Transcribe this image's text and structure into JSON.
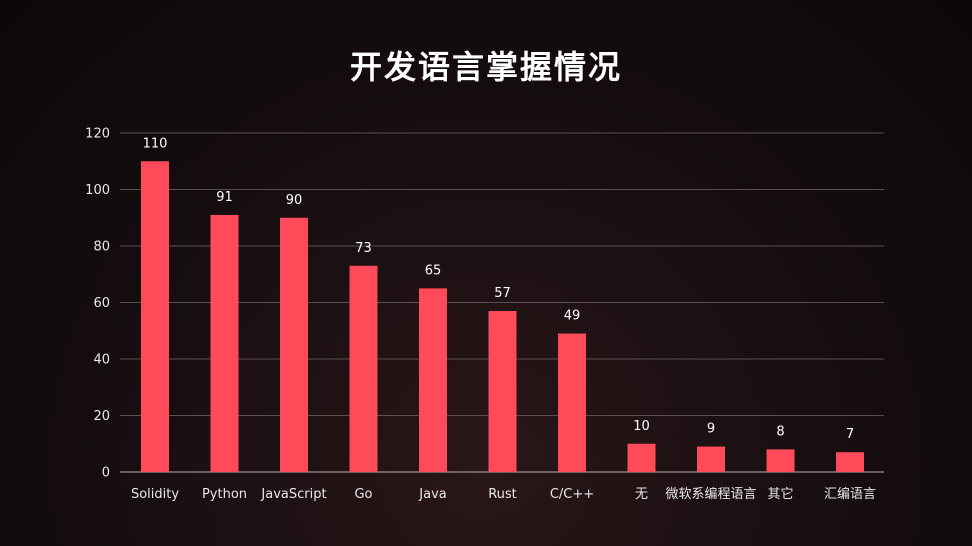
{
  "chart_data": {
    "type": "bar",
    "title": "开发语言掌握情况",
    "categories": [
      "Solidity",
      "Python",
      "JavaScript",
      "Go",
      "Java",
      "Rust",
      "C/C++",
      "无",
      "微软系编程语言",
      "其它",
      "汇编语言"
    ],
    "values": [
      110,
      91,
      90,
      73,
      65,
      57,
      49,
      10,
      9,
      8,
      7
    ],
    "xlabel": "",
    "ylabel": "",
    "ylim": [
      0,
      120
    ],
    "yticks": [
      0,
      20,
      40,
      60,
      80,
      100,
      120
    ],
    "grid": true,
    "legend": "none",
    "bar_color": "#ff4a5a",
    "grid_color": "#5a5050",
    "background_color": "#150d0f"
  }
}
